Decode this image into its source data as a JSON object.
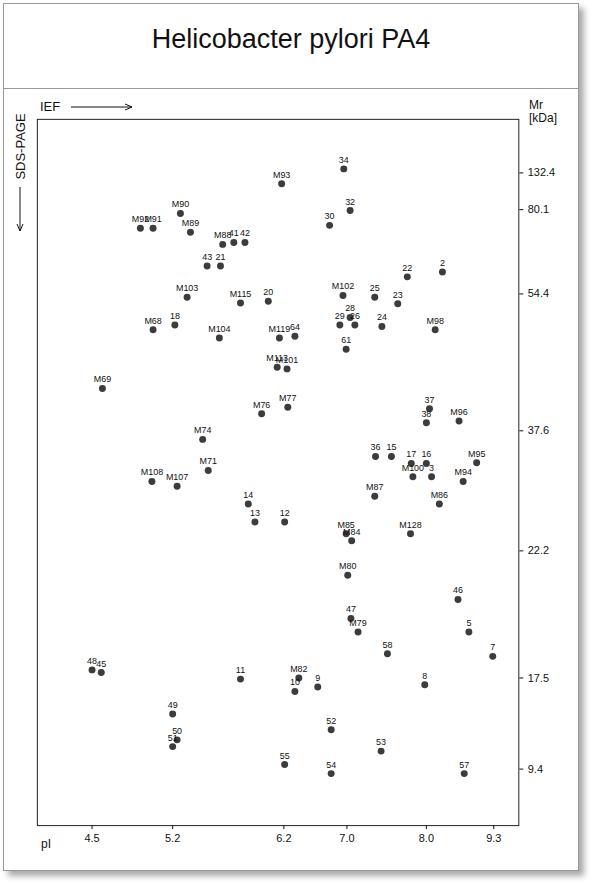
{
  "chart_data": {
    "type": "scatter",
    "title": "Helicobacter pylori PA4",
    "xlabel": "pI",
    "ylabel": "Mr [kDa]",
    "annotations": [
      "IEF",
      "SDS-PAGE"
    ],
    "xlim": [
      4.02,
      9.78
    ],
    "xticks": [
      4.5,
      5.2,
      6.2,
      {
        "value": 7,
        "label": "7.0"
      },
      {
        "value": 8,
        "label": "8.0"
      },
      9.3
    ],
    "ylim": [
      4.4,
      208.8
    ],
    "yticks": [
      9.4,
      17.5,
      22.2,
      37.6,
      54.4,
      80.1,
      132.4
    ],
    "color": "#1a1a1a",
    "marker": "circle",
    "data_labels": true,
    "labels": [
      "34",
      "M93",
      "32",
      "30",
      "M90",
      "M92",
      "M91",
      "M89",
      "M88",
      "41",
      "42",
      "43",
      "21",
      "22",
      "2",
      "M102",
      "25",
      "28",
      "23",
      "M103",
      "M115",
      "20",
      "M98",
      "M68",
      "18",
      "M104",
      "29",
      "26",
      "24",
      "64",
      "M119",
      "61",
      "M113",
      "M101",
      "M69",
      "M76",
      "M77",
      "37",
      "M96",
      "38",
      "M74",
      "15",
      "17",
      "16",
      "M95",
      "36",
      "M71",
      "M108",
      "M100",
      "3",
      "M94",
      "M107",
      "M87",
      "M86",
      "14",
      "12",
      "13",
      "M85",
      "M84",
      "M128",
      "M80",
      "46",
      "47",
      "M79",
      "5",
      "58",
      "7",
      "48",
      "45",
      "11",
      "M82",
      "9",
      "10",
      "8",
      "52",
      "49",
      "50",
      "51",
      "53",
      "55",
      "54",
      "57"
    ],
    "x": [
      6.96,
      6.18,
      7.04,
      6.78,
      5.27,
      4.92,
      5.03,
      5.36,
      5.65,
      5.75,
      5.85,
      5.51,
      5.63,
      7.76,
      8.31,
      6.95,
      7.35,
      7.04,
      7.64,
      5.33,
      5.81,
      6.06,
      8.17,
      5.03,
      5.22,
      5.62,
      6.91,
      7.1,
      7.44,
      6.34,
      6.16,
      6.99,
      6.14,
      6.24,
      4.59,
      6.0,
      6.25,
      8.06,
      8.63,
      8.0,
      5.47,
      7.56,
      7.81,
      8.0,
      8.97,
      7.36,
      5.52,
      5.02,
      7.83,
      8.1,
      8.71,
      5.24,
      7.35,
      8.25,
      5.88,
      6.21,
      5.94,
      6.99,
      7.06,
      7.8,
      7.01,
      8.61,
      7.05,
      7.14,
      8.82,
      7.51,
      9.28,
      4.5,
      4.58,
      5.81,
      6.39,
      6.63,
      6.34,
      7.98,
      6.8,
      5.2,
      5.24,
      5.2,
      7.43,
      6.21,
      6.8,
      8.73
    ],
    "y": [
      138.1,
      116.8,
      79.8,
      75.3,
      78.9,
      74.4,
      74.4,
      73.2,
      69.5,
      70.1,
      70.1,
      62.9,
      62.9,
      59.6,
      61.1,
      54.2,
      54.0,
      51.5,
      53.2,
      54.0,
      53.3,
      53.5,
      50.0,
      50.0,
      50.6,
      49.0,
      50.6,
      50.6,
      50.4,
      49.2,
      49.0,
      47.6,
      45.4,
      45.2,
      42.8,
      39.7,
      40.5,
      40.3,
      38.8,
      38.6,
      36.5,
      34.3,
      33.4,
      33.4,
      33.5,
      34.3,
      32.5,
      31.1,
      31.7,
      31.7,
      31.1,
      30.5,
      29.2,
      28.2,
      28.2,
      25.9,
      25.9,
      24.4,
      23.5,
      24.4,
      21.3,
      20.4,
      19.7,
      19.2,
      19.2,
      18.4,
      18.3,
      17.8,
      17.7,
      17.4,
      17.5,
      16.7,
      16.3,
      16.9,
      12.9,
      14.3,
      12.0,
      11.4,
      11.0,
      9.8,
      9.0,
      9.0
    ]
  }
}
